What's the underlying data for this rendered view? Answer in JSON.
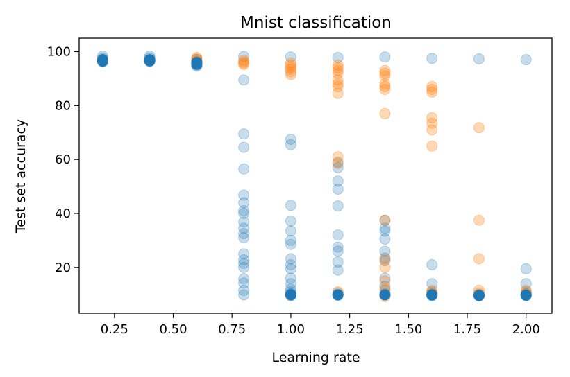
{
  "chart_data": {
    "type": "scatter",
    "title": "Mnist classification",
    "xlabel": "Learning rate",
    "ylabel": "Test set accuracy",
    "xlim": [
      0.1,
      2.11
    ],
    "ylim": [
      3,
      105
    ],
    "grid": false,
    "x_ticks": [
      {
        "value": 0.25,
        "label": "0.25"
      },
      {
        "value": 0.5,
        "label": "0.50"
      },
      {
        "value": 0.75,
        "label": "0.75"
      },
      {
        "value": 1.0,
        "label": "1.00"
      },
      {
        "value": 1.25,
        "label": "1.25"
      },
      {
        "value": 1.5,
        "label": "1.50"
      },
      {
        "value": 1.75,
        "label": "1.75"
      },
      {
        "value": 2.0,
        "label": "2.00"
      }
    ],
    "y_ticks": [
      {
        "value": 20,
        "label": "20"
      },
      {
        "value": 40,
        "label": "40"
      },
      {
        "value": 60,
        "label": "60"
      },
      {
        "value": 80,
        "label": "80"
      },
      {
        "value": 100,
        "label": "100"
      }
    ],
    "series": [
      {
        "name": "series-blue",
        "color": "#1f77b4",
        "alpha": 0.25,
        "points": [
          [
            0.2,
            98.3
          ],
          [
            0.2,
            97.5
          ],
          [
            0.2,
            97.0
          ],
          [
            0.2,
            96.5
          ],
          [
            0.2,
            96.2
          ],
          [
            0.4,
            98.3
          ],
          [
            0.4,
            97.6
          ],
          [
            0.4,
            97.0
          ],
          [
            0.4,
            96.6
          ],
          [
            0.4,
            96.3
          ],
          [
            0.6,
            97.2
          ],
          [
            0.6,
            96.5
          ],
          [
            0.6,
            96.0
          ],
          [
            0.6,
            95.5
          ],
          [
            0.6,
            95.0
          ],
          [
            0.6,
            94.6
          ],
          [
            0.8,
            98.2
          ],
          [
            0.8,
            89.5
          ],
          [
            0.8,
            69.5
          ],
          [
            0.8,
            64.5
          ],
          [
            0.8,
            56.5
          ],
          [
            0.8,
            46.8
          ],
          [
            0.8,
            44.0
          ],
          [
            0.8,
            41.0
          ],
          [
            0.8,
            40.0
          ],
          [
            0.8,
            36.8
          ],
          [
            0.8,
            34.5
          ],
          [
            0.8,
            32.5
          ],
          [
            0.8,
            31.0
          ],
          [
            0.8,
            25.0
          ],
          [
            0.8,
            22.8
          ],
          [
            0.8,
            21.5
          ],
          [
            0.8,
            20.0
          ],
          [
            0.8,
            15.8
          ],
          [
            0.8,
            14.2
          ],
          [
            0.8,
            11.5
          ],
          [
            0.8,
            9.8
          ],
          [
            1.0,
            98.0
          ],
          [
            1.0,
            67.5
          ],
          [
            1.0,
            65.5
          ],
          [
            1.0,
            43.0
          ],
          [
            1.0,
            37.2
          ],
          [
            1.0,
            33.5
          ],
          [
            1.0,
            30.0
          ],
          [
            1.0,
            28.5
          ],
          [
            1.0,
            23.2
          ],
          [
            1.0,
            21.0
          ],
          [
            1.0,
            19.5
          ],
          [
            1.0,
            16.0
          ],
          [
            1.0,
            14.0
          ],
          [
            1.0,
            12.0
          ],
          [
            1.0,
            11.0
          ],
          [
            1.0,
            10.3
          ],
          [
            1.0,
            9.8
          ],
          [
            1.0,
            9.6
          ],
          [
            1.0,
            9.5
          ],
          [
            1.2,
            97.8
          ],
          [
            1.2,
            59.0
          ],
          [
            1.2,
            57.0
          ],
          [
            1.2,
            52.0
          ],
          [
            1.2,
            49.0
          ],
          [
            1.2,
            42.8
          ],
          [
            1.2,
            32.0
          ],
          [
            1.2,
            27.5
          ],
          [
            1.2,
            26.0
          ],
          [
            1.2,
            22.0
          ],
          [
            1.2,
            19.0
          ],
          [
            1.2,
            10.5
          ],
          [
            1.2,
            10.0
          ],
          [
            1.2,
            9.8
          ],
          [
            1.2,
            9.6
          ],
          [
            1.4,
            98.0
          ],
          [
            1.4,
            37.5
          ],
          [
            1.4,
            34.5
          ],
          [
            1.4,
            33.5
          ],
          [
            1.4,
            30.5
          ],
          [
            1.4,
            26.0
          ],
          [
            1.4,
            23.5
          ],
          [
            1.4,
            22.5
          ],
          [
            1.4,
            16.0
          ],
          [
            1.4,
            13.0
          ],
          [
            1.4,
            11.5
          ],
          [
            1.4,
            10.3
          ],
          [
            1.4,
            9.8
          ],
          [
            1.6,
            97.5
          ],
          [
            1.6,
            21.0
          ],
          [
            1.6,
            14.0
          ],
          [
            1.6,
            11.0
          ],
          [
            1.6,
            10.3
          ],
          [
            1.6,
            10.0
          ],
          [
            1.6,
            9.8
          ],
          [
            1.6,
            9.6
          ],
          [
            1.6,
            9.5
          ],
          [
            1.8,
            97.3
          ],
          [
            1.8,
            10.0
          ],
          [
            1.8,
            9.8
          ],
          [
            1.8,
            9.6
          ],
          [
            1.8,
            9.5
          ],
          [
            1.8,
            9.4
          ],
          [
            2.0,
            97.0
          ],
          [
            2.0,
            19.5
          ],
          [
            2.0,
            14.0
          ],
          [
            2.0,
            11.0
          ],
          [
            2.0,
            10.2
          ],
          [
            2.0,
            9.9
          ],
          [
            2.0,
            9.7
          ],
          [
            2.0,
            9.5
          ]
        ]
      },
      {
        "name": "series-orange",
        "color": "#ff7f0e",
        "alpha": 0.3,
        "points": [
          [
            0.6,
            97.8
          ],
          [
            0.6,
            97.2
          ],
          [
            0.6,
            96.5
          ],
          [
            0.8,
            96.8
          ],
          [
            0.8,
            96.2
          ],
          [
            0.8,
            95.7
          ],
          [
            0.8,
            95.2
          ],
          [
            1.0,
            95.8
          ],
          [
            1.0,
            95.0
          ],
          [
            1.0,
            94.2
          ],
          [
            1.0,
            93.5
          ],
          [
            1.0,
            92.5
          ],
          [
            1.0,
            91.5
          ],
          [
            1.2,
            95.0
          ],
          [
            1.2,
            94.0
          ],
          [
            1.2,
            93.0
          ],
          [
            1.2,
            92.0
          ],
          [
            1.2,
            89.5
          ],
          [
            1.2,
            88.0
          ],
          [
            1.2,
            87.0
          ],
          [
            1.2,
            84.5
          ],
          [
            1.2,
            61.0
          ],
          [
            1.2,
            58.5
          ],
          [
            1.2,
            11.0
          ],
          [
            1.4,
            93.0
          ],
          [
            1.4,
            92.0
          ],
          [
            1.4,
            91.0
          ],
          [
            1.4,
            88.0
          ],
          [
            1.4,
            87.0
          ],
          [
            1.4,
            86.0
          ],
          [
            1.4,
            77.0
          ],
          [
            1.4,
            37.5
          ],
          [
            1.4,
            23.0
          ],
          [
            1.4,
            20.0
          ],
          [
            1.4,
            15.0
          ],
          [
            1.4,
            12.0
          ],
          [
            1.4,
            10.0
          ],
          [
            1.4,
            9.2
          ],
          [
            1.6,
            87.0
          ],
          [
            1.6,
            86.0
          ],
          [
            1.6,
            85.0
          ],
          [
            1.6,
            75.5
          ],
          [
            1.6,
            73.5
          ],
          [
            1.6,
            71.0
          ],
          [
            1.6,
            65.0
          ],
          [
            1.6,
            11.5
          ],
          [
            1.6,
            10.5
          ],
          [
            1.8,
            71.8
          ],
          [
            1.8,
            37.5
          ],
          [
            1.8,
            23.2
          ],
          [
            1.8,
            11.5
          ],
          [
            1.8,
            10.5
          ],
          [
            2.0,
            11.5
          ],
          [
            2.0,
            10.5
          ]
        ]
      },
      {
        "name": "series-blue-solid",
        "color": "#1f77b4",
        "alpha": 1.0,
        "points": [
          [
            0.2,
            97.0
          ],
          [
            0.2,
            96.5
          ],
          [
            0.4,
            97.0
          ],
          [
            0.4,
            96.6
          ],
          [
            0.6,
            96.0
          ],
          [
            0.6,
            95.3
          ],
          [
            1.0,
            9.9
          ],
          [
            1.2,
            9.8
          ],
          [
            1.4,
            9.8
          ],
          [
            1.6,
            9.8
          ],
          [
            1.8,
            9.6
          ],
          [
            2.0,
            9.7
          ]
        ]
      }
    ]
  }
}
